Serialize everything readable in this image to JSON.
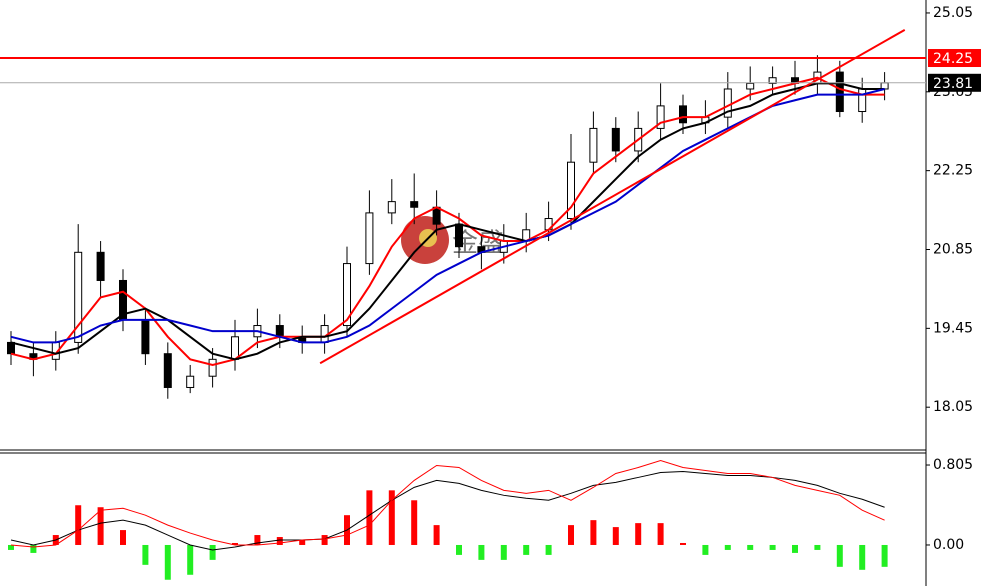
{
  "chart_data": [
    {
      "type": "candlestick",
      "watermark": "金盛",
      "ylim": [
        17.29,
        25.28
      ],
      "yticks": [
        18.05,
        19.45,
        20.85,
        22.25,
        23.65,
        25.05
      ],
      "open": [
        19.2,
        19.0,
        18.9,
        19.2,
        20.8,
        20.3,
        19.6,
        19.0,
        18.4,
        18.6,
        18.9,
        19.3,
        19.5,
        19.3,
        19.2,
        19.5,
        20.6,
        21.5,
        21.7,
        21.6,
        21.3,
        20.9,
        20.8,
        21.0,
        21.2,
        21.4,
        22.4,
        23.0,
        22.6,
        23.0,
        23.4,
        23.1,
        23.2,
        23.7,
        23.8,
        23.9,
        23.8,
        24.0,
        23.3,
        23.7
      ],
      "high": [
        19.4,
        19.2,
        19.4,
        21.3,
        21.0,
        20.5,
        19.8,
        19.2,
        18.8,
        19.1,
        19.6,
        19.8,
        19.7,
        19.5,
        19.7,
        20.9,
        21.9,
        22.1,
        22.2,
        21.9,
        21.5,
        21.1,
        21.3,
        21.5,
        21.7,
        22.9,
        23.3,
        23.2,
        23.3,
        23.8,
        23.6,
        23.5,
        24.0,
        24.1,
        24.1,
        24.2,
        24.3,
        24.2,
        23.9,
        24.0
      ],
      "low": [
        18.8,
        18.6,
        18.7,
        19.0,
        20.0,
        19.4,
        18.8,
        18.2,
        18.3,
        18.4,
        18.7,
        19.1,
        19.1,
        19.0,
        19.0,
        19.3,
        20.4,
        21.3,
        21.3,
        21.1,
        20.7,
        20.5,
        20.6,
        20.8,
        21.0,
        21.2,
        22.2,
        22.4,
        22.4,
        22.8,
        22.9,
        22.9,
        23.0,
        23.5,
        23.6,
        23.6,
        23.6,
        23.2,
        23.1,
        23.5
      ],
      "close": [
        19.0,
        18.9,
        19.2,
        20.8,
        20.3,
        19.6,
        19.0,
        18.4,
        18.6,
        18.9,
        19.3,
        19.5,
        19.3,
        19.2,
        19.5,
        20.6,
        21.5,
        21.7,
        21.6,
        21.3,
        20.9,
        20.8,
        21.0,
        21.2,
        21.4,
        22.4,
        23.0,
        22.6,
        23.0,
        23.4,
        23.1,
        23.2,
        23.7,
        23.8,
        23.9,
        23.8,
        24.0,
        23.3,
        23.7,
        23.81
      ],
      "series": [
        {
          "color": "#ff0000",
          "values": [
            19.0,
            18.9,
            19.0,
            19.5,
            20.0,
            20.1,
            19.8,
            19.3,
            18.9,
            18.8,
            18.9,
            19.2,
            19.3,
            19.3,
            19.3,
            19.6,
            20.2,
            20.9,
            21.4,
            21.6,
            21.4,
            21.1,
            21.0,
            21.0,
            21.2,
            21.6,
            22.2,
            22.5,
            22.8,
            23.1,
            23.2,
            23.2,
            23.4,
            23.6,
            23.7,
            23.8,
            23.9,
            23.7,
            23.6,
            23.6
          ]
        },
        {
          "color": "#000000",
          "values": [
            19.2,
            19.1,
            19.0,
            19.1,
            19.4,
            19.7,
            19.8,
            19.6,
            19.3,
            19.0,
            18.9,
            19.0,
            19.2,
            19.3,
            19.3,
            19.4,
            19.8,
            20.3,
            20.8,
            21.2,
            21.3,
            21.2,
            21.1,
            21.0,
            21.1,
            21.3,
            21.7,
            22.1,
            22.5,
            22.8,
            23.0,
            23.1,
            23.3,
            23.4,
            23.6,
            23.7,
            23.8,
            23.8,
            23.7,
            23.7
          ]
        },
        {
          "color": "#0000cc",
          "values": [
            19.3,
            19.2,
            19.2,
            19.3,
            19.5,
            19.6,
            19.6,
            19.6,
            19.5,
            19.4,
            19.4,
            19.4,
            19.3,
            19.2,
            19.2,
            19.3,
            19.5,
            19.8,
            20.1,
            20.4,
            20.6,
            20.8,
            20.9,
            21.0,
            21.1,
            21.3,
            21.5,
            21.7,
            22.0,
            22.3,
            22.6,
            22.8,
            23.0,
            23.2,
            23.4,
            23.5,
            23.6,
            23.6,
            23.6,
            23.7
          ]
        }
      ],
      "trendline": {
        "x": [
          13.8,
          39.9
        ],
        "y": [
          18.83,
          24.75
        ],
        "color": "#ff0000"
      },
      "hlines": [
        {
          "value": 24.25,
          "color": "#ff0000"
        },
        {
          "value": 23.81,
          "color": "#000000"
        }
      ]
    },
    {
      "type": "macd",
      "ylim": [
        -0.413,
        0.926
      ],
      "yticks": [
        0.805,
        {
          "value": 0,
          "label": "0.00"
        }
      ],
      "histogram": [
        -0.05,
        -0.08,
        0.1,
        0.4,
        0.38,
        0.15,
        -0.2,
        -0.35,
        -0.3,
        -0.15,
        0.02,
        0.1,
        0.08,
        0.05,
        0.1,
        0.3,
        0.55,
        0.55,
        0.45,
        0.2,
        -0.1,
        -0.15,
        -0.15,
        -0.1,
        -0.1,
        0.2,
        0.25,
        0.18,
        0.22,
        0.22,
        0.02,
        -0.1,
        -0.05,
        -0.05,
        -0.05,
        -0.08,
        -0.05,
        -0.22,
        -0.25,
        -0.22
      ],
      "up_color": "#ff0000",
      "down_color": "#22ee22",
      "series": [
        {
          "color": "#000000",
          "values": [
            0.05,
            0.0,
            0.05,
            0.15,
            0.22,
            0.25,
            0.2,
            0.1,
            0.0,
            -0.05,
            -0.02,
            0.02,
            0.05,
            0.05,
            0.06,
            0.15,
            0.3,
            0.45,
            0.58,
            0.65,
            0.62,
            0.55,
            0.5,
            0.47,
            0.45,
            0.52,
            0.6,
            0.63,
            0.68,
            0.73,
            0.74,
            0.72,
            0.7,
            0.7,
            0.68,
            0.65,
            0.6,
            0.52,
            0.46,
            0.38
          ]
        },
        {
          "color": "#ff0000",
          "values": [
            0.0,
            -0.02,
            0.0,
            0.15,
            0.35,
            0.37,
            0.3,
            0.2,
            0.12,
            0.05,
            0.0,
            0.0,
            0.02,
            0.05,
            0.06,
            0.1,
            0.2,
            0.45,
            0.65,
            0.8,
            0.78,
            0.65,
            0.55,
            0.52,
            0.55,
            0.45,
            0.58,
            0.72,
            0.78,
            0.85,
            0.78,
            0.75,
            0.72,
            0.72,
            0.68,
            0.6,
            0.55,
            0.5,
            0.35,
            0.25
          ]
        }
      ]
    }
  ]
}
